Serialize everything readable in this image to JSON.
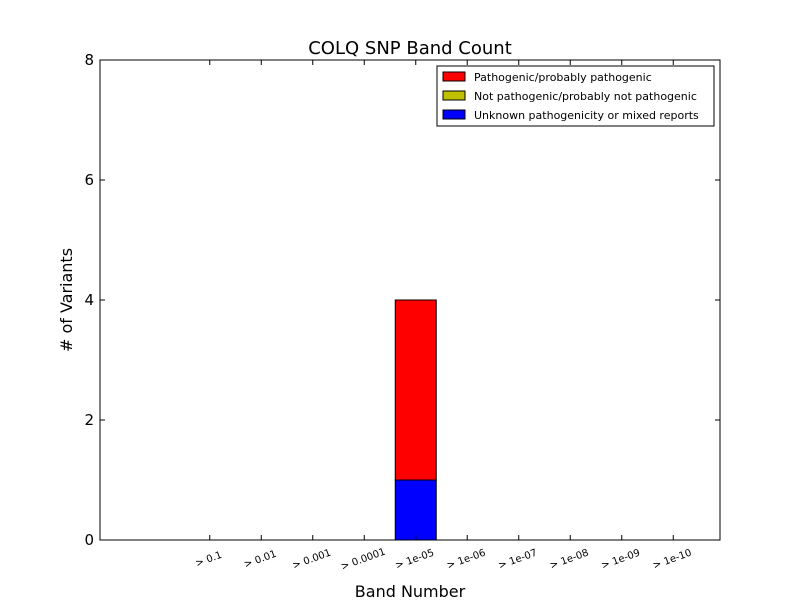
{
  "chart_data": {
    "type": "bar",
    "stacked": true,
    "title": "COLQ SNP Band Count",
    "xlabel": "Band Number",
    "ylabel": "# of Variants",
    "ylim": [
      0,
      8
    ],
    "yticks": [
      0,
      2,
      4,
      6,
      8
    ],
    "categories": [
      "> 0.1",
      "> 0.01",
      "> 0.001",
      "> 0.0001",
      "> 1e-05",
      "> 1e-06",
      "> 1e-07",
      "> 1e-08",
      "> 1e-09",
      "> 1e-10"
    ],
    "series": [
      {
        "name": "Unknown pathogenicity or mixed reports",
        "color": "#0000ff",
        "values": [
          0,
          0,
          0,
          0,
          1,
          0,
          0,
          0,
          0,
          0
        ]
      },
      {
        "name": "Pathogenic/probably pathogenic",
        "color": "#ff0000",
        "values": [
          0,
          0,
          0,
          0,
          3,
          0,
          0,
          0,
          0,
          0
        ]
      },
      {
        "name": "Not pathogenic/probably not pathogenic",
        "color": "#bfbf00",
        "values": [
          0,
          0,
          0,
          0,
          0,
          0,
          0,
          0,
          0,
          0
        ]
      }
    ],
    "legend": {
      "position": "top-right",
      "order": [
        "Pathogenic/probably pathogenic",
        "Not pathogenic/probably not pathogenic",
        "Unknown pathogenicity or mixed reports"
      ]
    },
    "grid": false
  }
}
